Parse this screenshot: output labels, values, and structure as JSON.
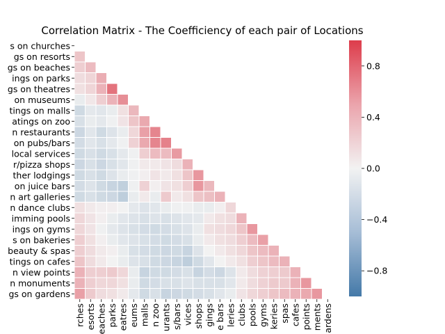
{
  "chart_data": {
    "type": "heatmap",
    "title": "Correlation Matrix - The Coefficiency of each pair of Locations",
    "row_labels": [
      "s on churches",
      "gs on resorts",
      "gs on beaches",
      "ings on parks",
      "gs on theatres",
      "on museums",
      "tings on malls",
      "atings on zoo",
      "n restaurants",
      "on pubs/bars",
      "local services",
      "r/pizza shops",
      "ther lodgings",
      "on juice bars",
      "n art galleries",
      "n dance clubs",
      "imming pools",
      "ings on gyms",
      "s on bakeries",
      "beauty & spas",
      "tings on cafes",
      "n view points",
      "n monuments",
      "gs on gardens"
    ],
    "col_labels": [
      "rches",
      "esorts",
      "eaches",
      "parks",
      "eatres",
      "eums",
      "malls",
      "n zoo",
      "urants",
      "s/bars",
      "vices",
      "shops",
      "gings",
      "e bars",
      "leries",
      "clubs",
      "pools",
      "gyms",
      "keries",
      "spas",
      "cafes",
      "points",
      "ments",
      "ardens"
    ],
    "colorbar_ticks": [
      "0.8",
      "0.4",
      "0.0",
      "−0.4",
      "−0.8"
    ],
    "vmin": -1,
    "vmax": 1,
    "colors": {
      "negative": "#4479A8",
      "center": "#F2F2F2",
      "positive": "#DD3C4B"
    },
    "values": [
      [],
      [
        0.25
      ],
      [
        0.2,
        0.3
      ],
      [
        0.12,
        0.16,
        0.38
      ],
      [
        0.1,
        0.16,
        0.35,
        0.7
      ],
      [
        -0.05,
        0.06,
        0.2,
        0.35,
        0.55
      ],
      [
        -0.2,
        -0.08,
        -0.1,
        -0.05,
        0.1,
        0.32
      ],
      [
        -0.15,
        -0.05,
        -0.08,
        -0.02,
        0.08,
        0.25,
        0.4
      ],
      [
        -0.22,
        -0.1,
        -0.2,
        -0.12,
        -0.05,
        0.15,
        0.45,
        0.6
      ],
      [
        -0.18,
        -0.1,
        -0.15,
        -0.08,
        -0.02,
        0.18,
        0.4,
        0.6,
        0.62
      ],
      [
        -0.2,
        -0.15,
        -0.2,
        -0.15,
        -0.08,
        -0.02,
        0.2,
        0.3,
        0.3,
        0.48
      ],
      [
        -0.22,
        -0.15,
        -0.22,
        -0.15,
        -0.1,
        -0.02,
        0.05,
        0.05,
        0.08,
        0.12,
        0.35
      ],
      [
        -0.2,
        -0.15,
        -0.2,
        -0.12,
        -0.05,
        -0.02,
        0.02,
        0.08,
        0.05,
        0.1,
        0.25,
        0.5
      ],
      [
        -0.18,
        -0.12,
        -0.2,
        -0.25,
        -0.28,
        -0.02,
        0.18,
        0.02,
        0.08,
        0.1,
        0.2,
        0.5,
        0.32
      ],
      [
        -0.2,
        -0.15,
        -0.2,
        -0.22,
        -0.3,
        -0.05,
        0.05,
        -0.05,
        0.22,
        0.05,
        0.1,
        0.25,
        0.28,
        0.35
      ],
      [
        0.1,
        0.05,
        0.02,
        0.02,
        0.0,
        -0.08,
        -0.12,
        -0.1,
        -0.05,
        -0.02,
        -0.02,
        -0.05,
        -0.05,
        0.02,
        0.15
      ],
      [
        0.15,
        0.08,
        0.02,
        -0.05,
        -0.1,
        -0.12,
        -0.15,
        -0.12,
        -0.15,
        -0.12,
        -0.1,
        -0.08,
        0.05,
        0.1,
        0.12,
        0.35
      ],
      [
        0.15,
        0.08,
        -0.02,
        -0.08,
        -0.12,
        -0.15,
        -0.18,
        -0.2,
        -0.18,
        -0.15,
        -0.12,
        -0.05,
        0.1,
        0.12,
        0.15,
        0.25,
        0.5
      ],
      [
        0.2,
        0.1,
        0.02,
        -0.05,
        -0.1,
        -0.12,
        -0.15,
        -0.18,
        -0.2,
        -0.18,
        -0.15,
        -0.05,
        0.05,
        0.1,
        0.12,
        0.2,
        0.3,
        0.45
      ],
      [
        0.2,
        0.12,
        0.05,
        0.02,
        -0.05,
        -0.15,
        -0.18,
        -0.2,
        -0.22,
        -0.2,
        -0.25,
        -0.12,
        0.0,
        0.05,
        0.1,
        0.15,
        0.25,
        0.3,
        0.35
      ],
      [
        0.25,
        0.12,
        0.05,
        0.0,
        -0.05,
        -0.12,
        -0.15,
        -0.2,
        -0.22,
        -0.25,
        -0.3,
        -0.2,
        -0.1,
        0.0,
        0.05,
        0.1,
        0.2,
        0.25,
        0.3,
        0.35
      ],
      [
        0.35,
        0.2,
        0.2,
        0.22,
        0.15,
        -0.05,
        -0.25,
        -0.2,
        -0.2,
        -0.18,
        -0.15,
        -0.25,
        -0.18,
        -0.22,
        -0.12,
        0.05,
        0.12,
        0.18,
        0.2,
        0.22,
        0.35
      ],
      [
        0.35,
        0.2,
        0.15,
        0.15,
        0.1,
        -0.05,
        -0.2,
        -0.18,
        -0.15,
        -0.15,
        -0.12,
        -0.15,
        -0.15,
        -0.15,
        -0.1,
        0.05,
        0.12,
        0.18,
        0.22,
        0.22,
        0.35,
        0.5
      ],
      [
        0.45,
        0.22,
        0.12,
        0.1,
        0.05,
        -0.08,
        -0.2,
        -0.15,
        -0.25,
        -0.22,
        -0.2,
        -0.18,
        -0.15,
        -0.1,
        -0.05,
        0.08,
        0.15,
        0.2,
        0.25,
        0.3,
        0.35,
        0.4,
        0.5
      ]
    ]
  }
}
